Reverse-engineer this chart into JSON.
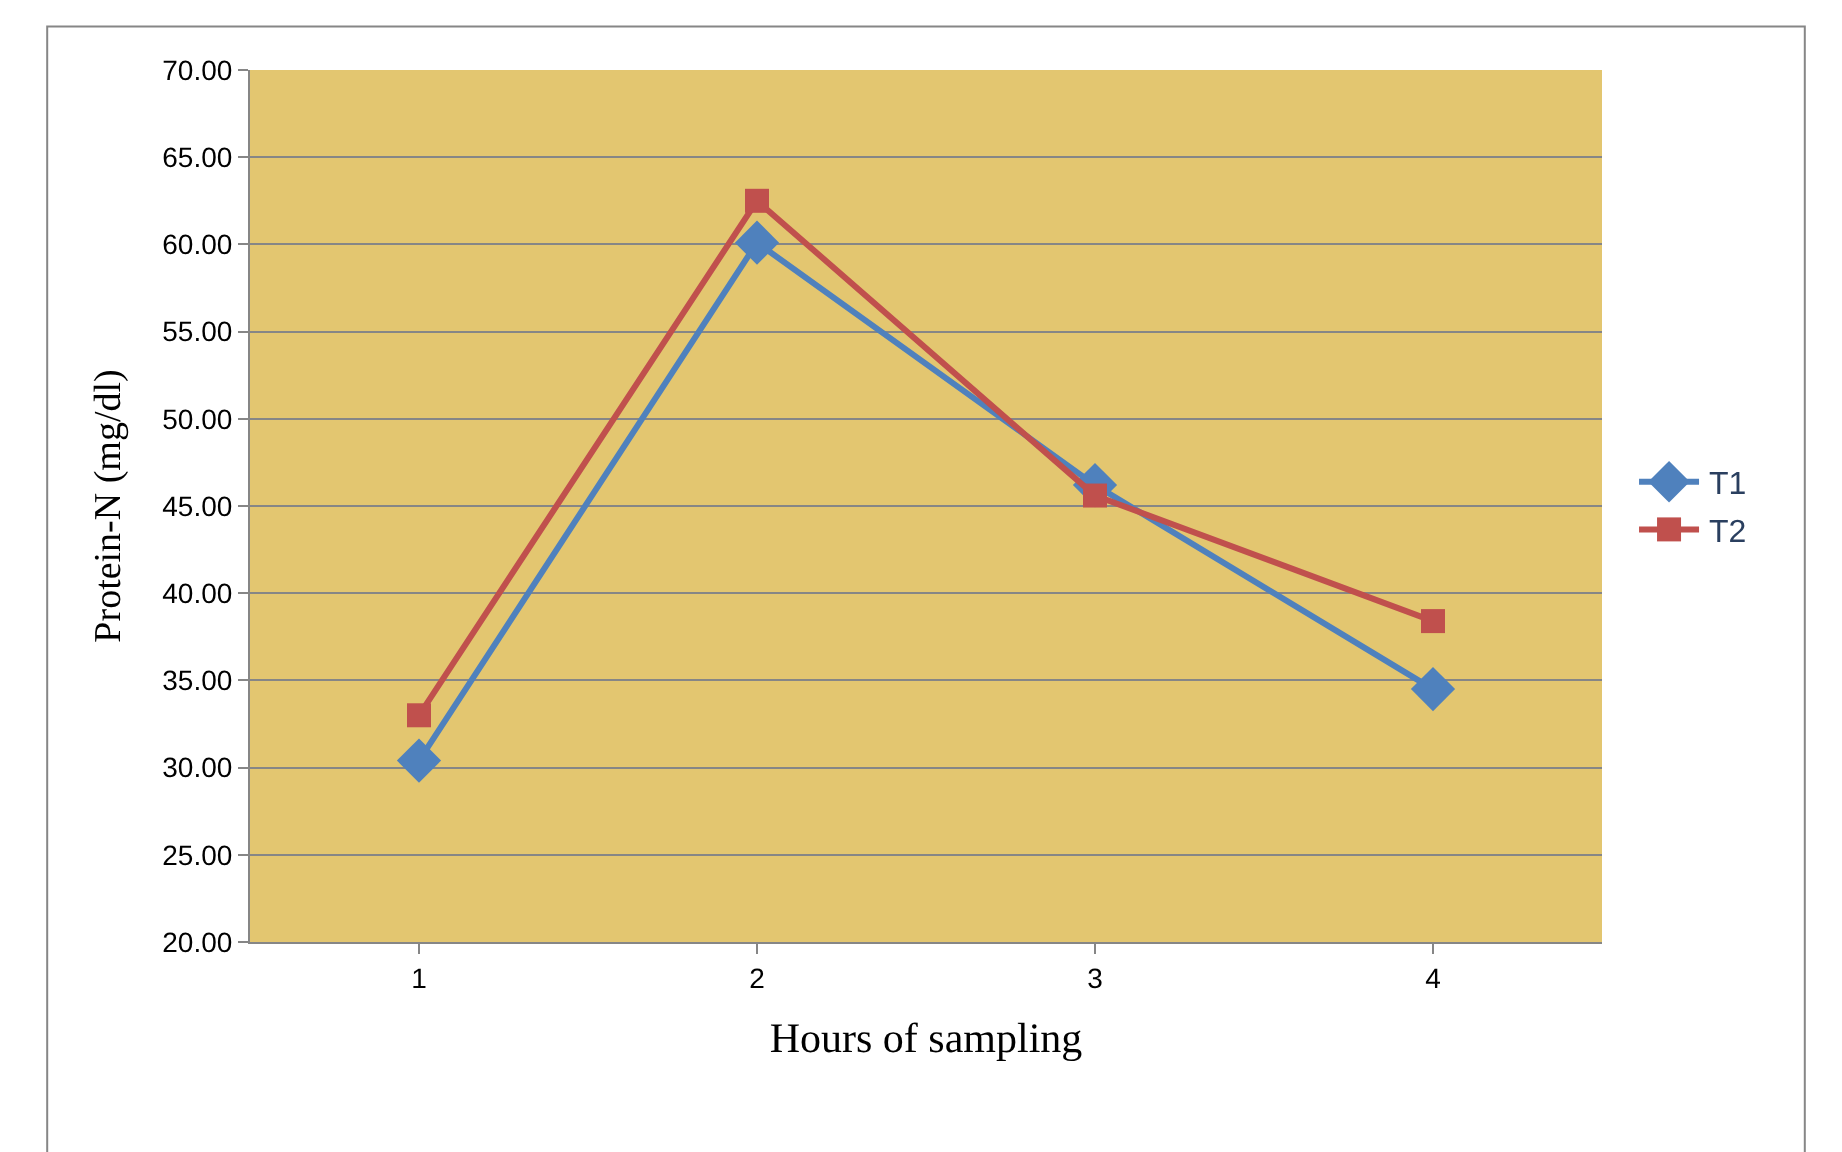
{
  "chart_data": {
    "type": "line",
    "xlabel": "Hours of sampling",
    "ylabel": "Protein-N (mg/dl)",
    "categories": [
      "1",
      "2",
      "3",
      "4"
    ],
    "series": [
      {
        "name": "T1",
        "color": "#4f81bd",
        "marker": "diamond",
        "values": [
          30.4,
          60.1,
          46.2,
          34.5
        ]
      },
      {
        "name": "T2",
        "color": "#c0504d",
        "marker": "square",
        "values": [
          33.0,
          62.5,
          45.6,
          38.4
        ]
      }
    ],
    "ylim": [
      20,
      70
    ],
    "yticks": [
      {
        "value": 20,
        "label": "20.00"
      },
      {
        "value": 25,
        "label": "25.00"
      },
      {
        "value": 30,
        "label": "30.00"
      },
      {
        "value": 35,
        "label": "35.00"
      },
      {
        "value": 40,
        "label": "40.00"
      },
      {
        "value": 45,
        "label": "45.00"
      },
      {
        "value": 50,
        "label": "50.00"
      },
      {
        "value": 55,
        "label": "55.00"
      },
      {
        "value": 60,
        "label": "60.00"
      },
      {
        "value": 65,
        "label": "65.00"
      },
      {
        "value": 70,
        "label": "70.00"
      }
    ],
    "grid": "y",
    "legend": "right",
    "line_style": "solid"
  }
}
